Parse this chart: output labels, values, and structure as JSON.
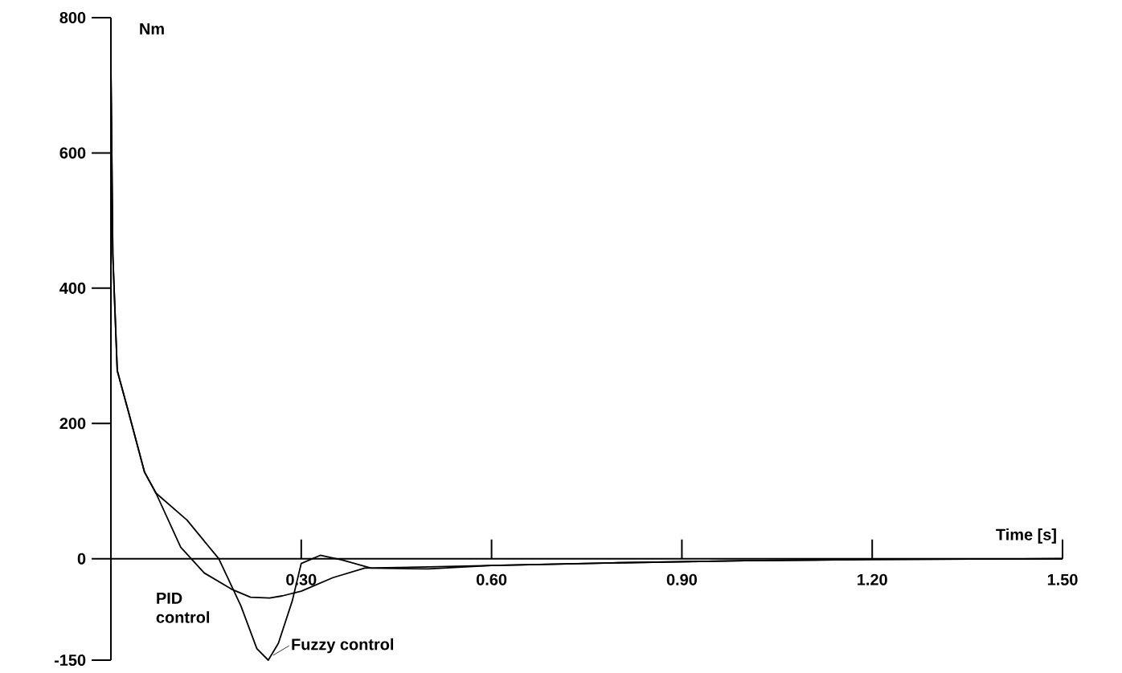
{
  "chart_data": {
    "type": "line",
    "xlabel": "Time [s]",
    "ylabel": "Nm",
    "xlim": [
      0,
      1.5
    ],
    "ylim": [
      -150,
      800
    ],
    "xticks": [
      {
        "value": 0.3,
        "label": "0.30"
      },
      {
        "value": 0.6,
        "label": "0.60"
      },
      {
        "value": 0.9,
        "label": "0.90"
      },
      {
        "value": 1.2,
        "label": "1.20"
      },
      {
        "value": 1.5,
        "label": "1.50"
      }
    ],
    "yticks": [
      -150,
      0,
      200,
      400,
      600,
      800
    ],
    "grid": false,
    "marker": "none",
    "line_style": "solid",
    "series": [
      {
        "name": "PID control",
        "color": "#000000",
        "x": [
          0,
          0.003,
          0.01,
          0.028,
          0.053,
          0.071,
          0.11,
          0.147,
          0.19,
          0.22,
          0.25,
          0.27,
          0.3,
          0.35,
          0.4,
          0.5,
          0.6,
          0.8,
          1.0,
          1.2,
          1.5
        ],
        "values": [
          730,
          450,
          278,
          216,
          128,
          97,
          17,
          -21,
          -45,
          -57,
          -58,
          -55,
          -48,
          -28,
          -14,
          -12,
          -10,
          -6,
          -3,
          -1,
          0
        ]
      },
      {
        "name": "Fuzzy control",
        "color": "#000000",
        "x": [
          0,
          0.003,
          0.01,
          0.028,
          0.053,
          0.071,
          0.12,
          0.17,
          0.205,
          0.23,
          0.248,
          0.264,
          0.286,
          0.3,
          0.33,
          0.365,
          0.41,
          0.5,
          0.6,
          0.8,
          1.0,
          1.2,
          1.5
        ],
        "values": [
          730,
          450,
          278,
          216,
          128,
          97,
          57,
          0,
          -70,
          -133,
          -150,
          -125,
          -62,
          -7,
          5,
          -2,
          -14,
          -15,
          -10,
          -6,
          -3,
          -1,
          0
        ]
      }
    ]
  }
}
